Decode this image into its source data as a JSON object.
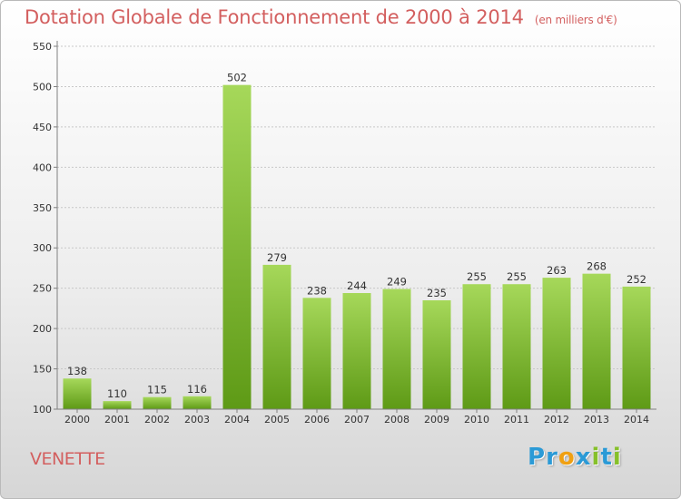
{
  "header": {
    "title": "Dotation Globale de Fonctionnement de 2000 à 2014",
    "subtitle": "(en milliers d'€)"
  },
  "footer": {
    "commune": "VENETTE",
    "brand_letters": [
      {
        "char": "P",
        "color": "#2b9ad6"
      },
      {
        "char": "r",
        "color": "#2b9ad6"
      },
      {
        "char": "o",
        "color": "#f0a012"
      },
      {
        "char": "x",
        "color": "#2b9ad6"
      },
      {
        "char": "i",
        "color": "#86c02a"
      },
      {
        "char": "t",
        "color": "#2b9ad6"
      },
      {
        "char": "i",
        "color": "#86c02a"
      }
    ]
  },
  "colors": {
    "title": "#d35f5f",
    "bar_light": "#a6d85a",
    "bar_dark": "#5e9a16",
    "grid": "#c8c8c8",
    "axis": "#808080",
    "label": "#333333"
  },
  "chart_data": {
    "type": "bar",
    "title": "Dotation Globale de Fonctionnement de 2000 à 2014",
    "subtitle": "(en milliers d'€)",
    "categories": [
      "2000",
      "2001",
      "2002",
      "2003",
      "2004",
      "2005",
      "2006",
      "2007",
      "2008",
      "2009",
      "2010",
      "2011",
      "2012",
      "2013",
      "2014"
    ],
    "values": [
      138,
      110,
      115,
      116,
      502,
      279,
      238,
      244,
      249,
      235,
      255,
      255,
      263,
      268,
      252
    ],
    "ylim": [
      100,
      550
    ],
    "yticks": [
      100,
      150,
      200,
      250,
      300,
      350,
      400,
      450,
      500,
      550
    ],
    "grid": true,
    "legend": "none"
  }
}
